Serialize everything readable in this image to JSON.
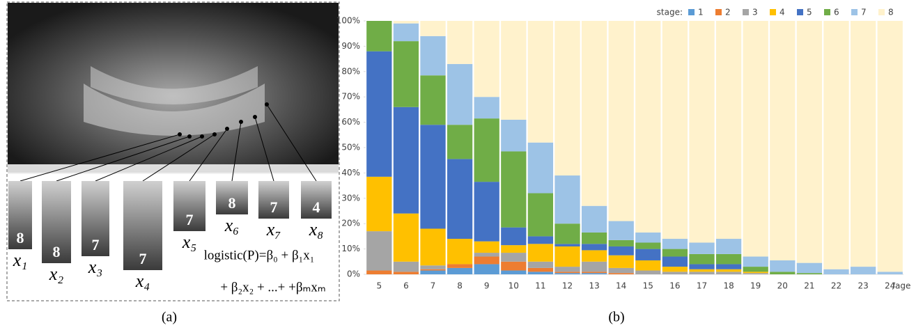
{
  "panel_a": {
    "caption": "(a)",
    "crops": [
      {
        "stage": "8",
        "label": "x₁"
      },
      {
        "stage": "8",
        "label": "x₂"
      },
      {
        "stage": "7",
        "label": "x₃"
      },
      {
        "stage": "7",
        "label": "x₄"
      },
      {
        "stage": "7",
        "label": "x₅"
      },
      {
        "stage": "8",
        "label": "x₆"
      },
      {
        "stage": "7",
        "label": "x₇"
      },
      {
        "stage": "4",
        "label": "x₈"
      }
    ],
    "formula": [
      "logistic(P)=β₀ + β₁x₁",
      "+ β₂x₂ + ...+ +βₘxₘ"
    ]
  },
  "chart_data": {
    "type": "stacked_bar",
    "caption": "(b)",
    "legend_title": "stage:",
    "x_label": "/age",
    "categories": [
      "5",
      "6",
      "7",
      "8",
      "9",
      "10",
      "11",
      "12",
      "13",
      "14",
      "15",
      "16",
      "17",
      "18",
      "19",
      "20",
      "21",
      "22",
      "23",
      "24"
    ],
    "series": [
      {
        "name": "1",
        "color": "#5b9bd5",
        "values": [
          0,
          0,
          1.5,
          2.5,
          4,
          1.5,
          1,
          0.5,
          0.5,
          0,
          0,
          0,
          0,
          0,
          0,
          0,
          0,
          0,
          0,
          0
        ]
      },
      {
        "name": "2",
        "color": "#ed7d31",
        "values": [
          1.5,
          1,
          0.5,
          1.5,
          3,
          3.5,
          1.5,
          0.5,
          0.5,
          0.5,
          0,
          0,
          0,
          0,
          0,
          0,
          0,
          0,
          0,
          0
        ]
      },
      {
        "name": "3",
        "color": "#a5a5a5",
        "values": [
          15.5,
          4,
          1.5,
          0,
          1.5,
          3.5,
          2.5,
          2,
          4,
          2,
          1.5,
          1,
          1,
          1,
          0.5,
          0,
          0,
          0,
          0,
          0
        ]
      },
      {
        "name": "4",
        "color": "#ffc000",
        "values": [
          21.5,
          19,
          14.5,
          10,
          4.5,
          3,
          7,
          8,
          4.5,
          5,
          4,
          2,
          1,
          1,
          0.5,
          0,
          0,
          0,
          0,
          0
        ]
      },
      {
        "name": "5",
        "color": "#4472c4",
        "values": [
          49.5,
          42,
          41,
          31.5,
          23.5,
          7,
          3,
          1,
          2.5,
          3.5,
          4.5,
          4,
          2,
          2,
          0,
          0,
          0,
          0,
          0,
          0
        ]
      },
      {
        "name": "6",
        "color": "#70ad47",
        "values": [
          12,
          26,
          19.5,
          13.5,
          25,
          30,
          17,
          8,
          4.5,
          2.5,
          2.5,
          3,
          4,
          4,
          2,
          1,
          0.5,
          0,
          0,
          0
        ]
      },
      {
        "name": "7",
        "color": "#9dc3e6",
        "values": [
          0,
          7,
          15.5,
          24,
          8.5,
          12.5,
          20,
          19,
          10.5,
          7.5,
          4,
          4,
          4.5,
          6,
          4,
          4.5,
          4,
          2,
          3,
          1
        ]
      },
      {
        "name": "8",
        "color": "#fff2cc",
        "values": [
          0,
          1,
          6,
          17,
          30,
          39,
          48,
          61,
          73,
          79,
          83.5,
          86,
          87.5,
          86,
          93,
          94.5,
          95.5,
          98,
          97,
          99
        ]
      }
    ],
    "ylim": [
      0,
      100
    ],
    "yticks": [
      {
        "value": 0,
        "label": "0%"
      },
      {
        "value": 10,
        "label": "10%"
      },
      {
        "value": 20,
        "label": "20%"
      },
      {
        "value": 30,
        "label": "30%"
      },
      {
        "value": 40,
        "label": "40%"
      },
      {
        "value": 50,
        "label": "50%"
      },
      {
        "value": 60,
        "label": "60%"
      },
      {
        "value": 70,
        "label": "70%"
      },
      {
        "value": 80,
        "label": "80%"
      },
      {
        "value": 90,
        "label": "90%"
      },
      {
        "value": 100,
        "label": "100%"
      }
    ]
  }
}
